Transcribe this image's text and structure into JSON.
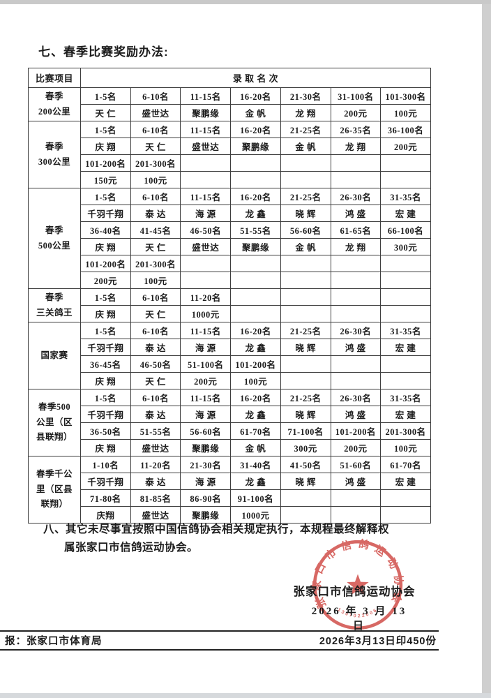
{
  "page": {
    "section7_title": "七、春季比赛奖励办法:",
    "section8_line1": "八、其它未尽事宜按照中国信鸽协会相关规定执行，本规程最终解释权",
    "section8_line2": "属张家口市信鸽运动协会。",
    "signature_org": "张家口市信鸽运动协会",
    "signature_date": "2026 年 3 月 13 日",
    "footer_left": "报：张家口市体育局",
    "footer_right": "2026年3月13日印450份"
  },
  "seal": {
    "arc_text": "张家口市信鸽运动协会",
    "serial": "1307022006",
    "color": "#cf4742"
  },
  "table": {
    "header_col1": "比赛项目",
    "header_main": "录 取 名 次",
    "sections": [
      {
        "label_lines": [
          "春季",
          "200公里"
        ],
        "rows": [
          [
            "1-5名",
            "6-10名",
            "11-15名",
            "16-20名",
            "21-30名",
            "31-100名",
            "101-300名"
          ],
          [
            "天 仁",
            "盛世达",
            "聚鹏缘",
            "金 帆",
            "龙 翔",
            "200元",
            "100元"
          ]
        ]
      },
      {
        "label_lines": [
          "春季",
          "300公里"
        ],
        "rows": [
          [
            "1-5名",
            "6-10名",
            "11-15名",
            "16-20名",
            "21-25名",
            "26-35名",
            "36-100名"
          ],
          [
            "庆 翔",
            "天 仁",
            "盛世达",
            "聚鹏缘",
            "金 帆",
            "龙 翔",
            "200元"
          ],
          [
            "101-200名",
            "201-300名",
            "",
            "",
            "",
            "",
            ""
          ],
          [
            "150元",
            "100元",
            "",
            "",
            "",
            "",
            ""
          ]
        ]
      },
      {
        "label_lines": [
          "春季",
          "500公里"
        ],
        "rows": [
          [
            "1-5名",
            "6-10名",
            "11-15名",
            "16-20名",
            "21-25名",
            "26-30名",
            "31-35名"
          ],
          [
            "千羽千翔",
            "泰 达",
            "海 源",
            "龙 鑫",
            "晓 辉",
            "鸿 盛",
            "宏 建"
          ],
          [
            "36-40名",
            "41-45名",
            "46-50名",
            "51-55名",
            "56-60名",
            "61-65名",
            "66-100名"
          ],
          [
            "庆 翔",
            "天 仁",
            "盛世达",
            "聚鹏缘",
            "金 帆",
            "龙 翔",
            "300元"
          ],
          [
            "101-200名",
            "201-300名",
            "",
            "",
            "",
            "",
            ""
          ],
          [
            "200元",
            "100元",
            "",
            "",
            "",
            "",
            ""
          ]
        ]
      },
      {
        "label_lines": [
          "春季",
          "三关鸽王"
        ],
        "rows": [
          [
            "1-5名",
            "6-10名",
            "11-20名",
            "",
            "",
            "",
            ""
          ],
          [
            "庆 翔",
            "天 仁",
            "1000元",
            "",
            "",
            "",
            ""
          ]
        ]
      },
      {
        "label_lines": [
          "国家赛"
        ],
        "rows": [
          [
            "1-5名",
            "6-10名",
            "11-15名",
            "16-20名",
            "21-25名",
            "26-30名",
            "31-35名"
          ],
          [
            "千羽千翔",
            "泰 达",
            "海 源",
            "龙 鑫",
            "晓 辉",
            "鸿 盛",
            "宏 建"
          ],
          [
            "36-45名",
            "46-50名",
            "51-100名",
            "101-200名",
            "",
            "",
            ""
          ],
          [
            "庆 翔",
            "天 仁",
            "200元",
            "100元",
            "",
            "",
            ""
          ]
        ]
      },
      {
        "label_lines": [
          "春季500",
          "公里（区",
          "县联翔）"
        ],
        "rows": [
          [
            "1-5名",
            "6-10名",
            "11-15名",
            "16-20名",
            "21-25名",
            "26-30名",
            "31-35名"
          ],
          [
            "千羽千翔",
            "泰 达",
            "海 源",
            "龙 鑫",
            "晓 辉",
            "鸿 盛",
            "宏 建"
          ],
          [
            "36-50名",
            "51-55名",
            "56-60名",
            "61-70名",
            "71-100名",
            "101-200名",
            "201-300名"
          ],
          [
            "庆 翔",
            "盛世达",
            "聚鹏缘",
            "金 帆",
            "300元",
            "200元",
            "100元"
          ]
        ]
      },
      {
        "label_lines": [
          "春季千公",
          "里（区县",
          "联翔）"
        ],
        "rows": [
          [
            "1-10名",
            "11-20名",
            "21-30名",
            "31-40名",
            "41-50名",
            "51-60名",
            "61-70名"
          ],
          [
            "千羽千翔",
            "泰 达",
            "海 源",
            "龙 鑫",
            "晓 辉",
            "鸿 盛",
            "宏 建"
          ],
          [
            "71-80名",
            "81-85名",
            "86-90名",
            "91-100名",
            "",
            "",
            ""
          ],
          [
            "庆翔",
            "盛世达",
            "聚鹏缘",
            "1000元",
            "",
            "",
            ""
          ]
        ]
      }
    ]
  }
}
